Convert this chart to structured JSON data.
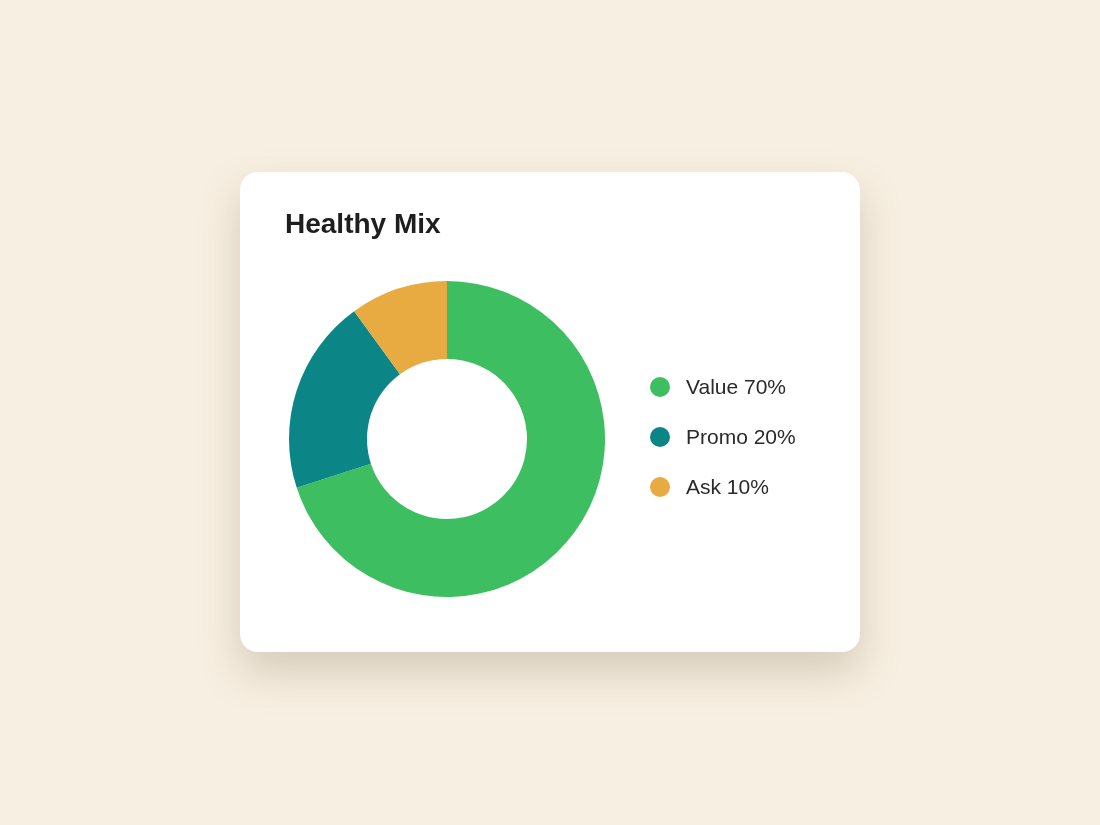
{
  "chart_data": {
    "type": "donut",
    "title": "Healthy Mix",
    "categories": [
      "Value",
      "Promo",
      "Ask"
    ],
    "values": [
      70,
      20,
      10
    ],
    "value_labels": [
      "70%",
      "20%",
      "10%"
    ],
    "colors": [
      "#3dbe60",
      "#0b8585",
      "#e8ab42"
    ],
    "legend": "right"
  }
}
